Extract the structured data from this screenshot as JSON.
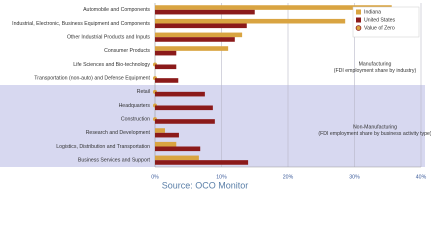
{
  "chart_data": {
    "type": "bar",
    "orientation": "horizontal",
    "categories": [
      "Automobile and Components",
      "Industrial, Electronic, Business Equipment and Components",
      "Other Industrial Products and Inputs",
      "Consumer Products",
      "Life Sciences and Bio-technology",
      "Transportation (non-auto) and Defense Equipment",
      "Retail",
      "Headquarters",
      "Construction",
      "Research and Development",
      "Logistics, Distribution and Transportation",
      "Business Services and Support"
    ],
    "series": [
      {
        "name": "Indiana",
        "color": "#d9a441",
        "values": [
          35.6,
          28.6,
          13.1,
          11.0,
          0,
          0,
          0,
          0,
          0,
          1.5,
          3.2,
          6.6
        ]
      },
      {
        "name": "United States",
        "color": "#8b1a1a",
        "values": [
          15.0,
          13.8,
          12.0,
          3.2,
          3.2,
          3.5,
          7.5,
          8.7,
          9.0,
          3.6,
          6.8,
          14.0
        ]
      }
    ],
    "zero_marker": {
      "label": "Value of Zero",
      "color": "#d9a441"
    },
    "xlim": [
      0,
      40
    ],
    "xticks": [
      {
        "value": 0,
        "label": "0%"
      },
      {
        "value": 10,
        "label": "10%"
      },
      {
        "value": 20,
        "label": "20%"
      },
      {
        "value": 30,
        "label": "30%"
      },
      {
        "value": 40,
        "label": "40%"
      }
    ],
    "grid": true,
    "legend": "upper right",
    "annotations": [
      {
        "text": "Manufacturing",
        "subtext": "(FDI employment share by industry)"
      },
      {
        "text": "Non-Manufacturing",
        "subtext": "(FDI employment share by business activity type)"
      }
    ],
    "source": "Source: OCO Monitor"
  }
}
